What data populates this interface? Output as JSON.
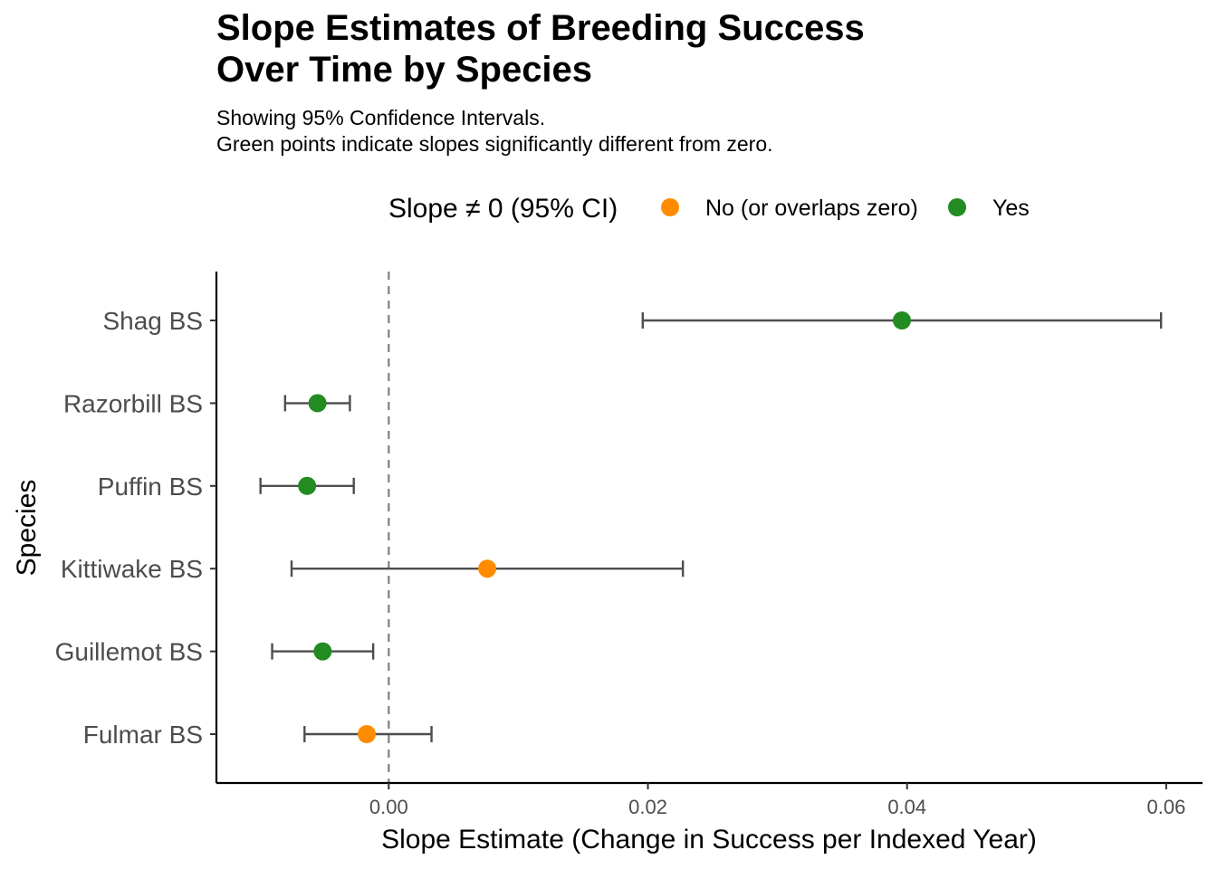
{
  "chart_data": {
    "type": "scatter",
    "title": "Slope Estimates of Breeding Success\nOver Time by Species",
    "subtitle": "Showing 95% Confidence Intervals.\nGreen points indicate slopes significantly different from zero.",
    "xlabel": "Slope Estimate (Change in Success per Indexed Year)",
    "ylabel": "Species",
    "xlim": [
      -0.0133,
      0.0628
    ],
    "x_ticks": [
      0.0,
      0.02,
      0.04,
      0.06
    ],
    "x_tick_labels": [
      "0.00",
      "0.02",
      "0.04",
      "0.06"
    ],
    "reference_line": {
      "x": 0,
      "style": "dashed"
    },
    "legend": {
      "title": "Slope ≠ 0 (95% CI)",
      "position": "top",
      "items": [
        {
          "label": "No (or overlaps zero)",
          "key": "no",
          "color": "#FF8C00"
        },
        {
          "label": "Yes",
          "key": "yes",
          "color": "#228B22"
        }
      ]
    },
    "categories": [
      "Shag BS",
      "Razorbill BS",
      "Puffin BS",
      "Kittiwake BS",
      "Guillemot BS",
      "Fulmar BS"
    ],
    "points": [
      {
        "species": "Shag BS",
        "estimate": 0.0396,
        "ci_low": 0.0196,
        "ci_high": 0.0596,
        "significant": "yes"
      },
      {
        "species": "Razorbill BS",
        "estimate": -0.0055,
        "ci_low": -0.008,
        "ci_high": -0.003,
        "significant": "yes"
      },
      {
        "species": "Puffin BS",
        "estimate": -0.0063,
        "ci_low": -0.0099,
        "ci_high": -0.0027,
        "significant": "yes"
      },
      {
        "species": "Kittiwake BS",
        "estimate": 0.0076,
        "ci_low": -0.0075,
        "ci_high": 0.0227,
        "significant": "no"
      },
      {
        "species": "Guillemot BS",
        "estimate": -0.0051,
        "ci_low": -0.009,
        "ci_high": -0.0012,
        "significant": "yes"
      },
      {
        "species": "Fulmar BS",
        "estimate": -0.0017,
        "ci_low": -0.0065,
        "ci_high": 0.0033,
        "significant": "no"
      }
    ],
    "grid": false
  }
}
